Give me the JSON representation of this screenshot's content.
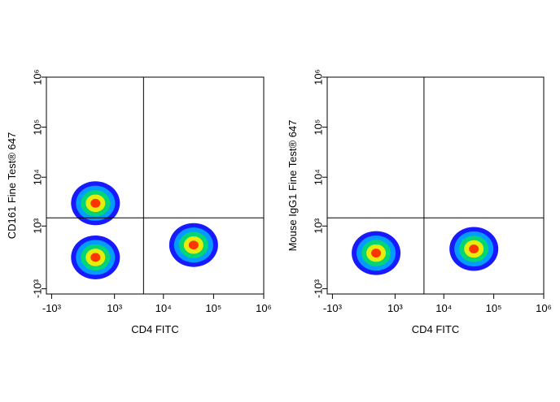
{
  "chart_data": [
    {
      "type": "scatter",
      "xlabel": "CD4 FITC",
      "ylabel": "CD161 Fine Test® 647",
      "scale": "biexponential",
      "x": [
        300,
        300,
        40000
      ],
      "y": [
        0,
        3000,
        300
      ],
      "colors": [
        "#0000ff",
        "#00aaff",
        "#00dd66",
        "#ffee00",
        "#ff2200"
      ],
      "xlim": [
        -1300,
        1000000
      ],
      "ylim": [
        -1300,
        1000000
      ],
      "xticks": [
        {
          "value": -1000,
          "label": "-10³"
        },
        {
          "value": 1000,
          "label": "10³"
        },
        {
          "value": 10000,
          "label": "10⁴"
        },
        {
          "value": 100000,
          "label": "10⁵"
        },
        {
          "value": 1000000,
          "label": "10⁶"
        }
      ],
      "yticks": [
        {
          "value": -1000,
          "label": "-10³"
        },
        {
          "value": 1000,
          "label": "10³"
        },
        {
          "value": 10000,
          "label": "10⁴"
        },
        {
          "value": 100000,
          "label": "10⁵"
        },
        {
          "value": 1000000,
          "label": "10⁶"
        }
      ],
      "gates": {
        "x": 4000,
        "y": 1500
      }
    },
    {
      "type": "scatter",
      "xlabel": "CD4 FITC",
      "ylabel": "Mouse IgG1 Fine Test® 647",
      "scale": "biexponential",
      "x": [
        300,
        40000
      ],
      "y": [
        100,
        200
      ],
      "colors": [
        "#0000ff",
        "#00aaff",
        "#00dd66",
        "#ffee00",
        "#ff2200"
      ],
      "xlim": [
        -1300,
        1000000
      ],
      "ylim": [
        -1300,
        1000000
      ],
      "xticks": [
        {
          "value": -1000,
          "label": "-10³"
        },
        {
          "value": 1000,
          "label": "10³"
        },
        {
          "value": 10000,
          "label": "10⁴"
        },
        {
          "value": 100000,
          "label": "10⁵"
        },
        {
          "value": 1000000,
          "label": "10⁶"
        }
      ],
      "yticks": [
        {
          "value": -1000,
          "label": "-10³"
        },
        {
          "value": 1000,
          "label": "10³"
        },
        {
          "value": 10000,
          "label": "10⁴"
        },
        {
          "value": 100000,
          "label": "10⁵"
        },
        {
          "value": 1000000,
          "label": "10⁶"
        }
      ],
      "gates": {
        "x": 4000,
        "y": 1500
      }
    }
  ]
}
